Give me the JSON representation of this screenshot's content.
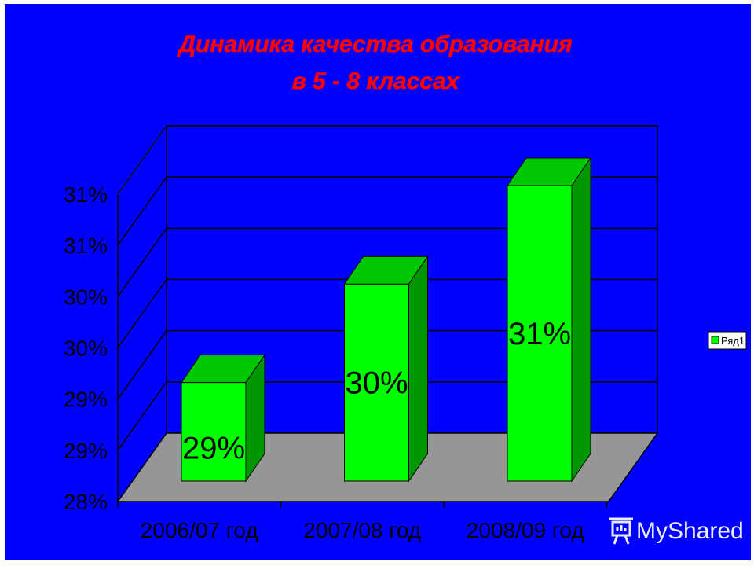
{
  "chart_data": {
    "type": "bar",
    "title_lines": [
      "Динамика качества образования",
      "в 5 - 8 классах"
    ],
    "categories": [
      "2006/07 год",
      "2007/08 год",
      "2008/09 год"
    ],
    "series": [
      {
        "name": "Ряд1",
        "values": [
          29,
          30,
          31
        ],
        "data_labels": [
          "29%",
          "30%",
          "31%"
        ]
      }
    ],
    "y_ticks": [
      "28%",
      "29%",
      "29%",
      "30%",
      "30%",
      "31%",
      "31%"
    ],
    "ylim": [
      28.0,
      31.0
    ],
    "grid": true,
    "legend_position": "right",
    "three_d": true,
    "colors": {
      "background": "#0000FF",
      "bar_front": "#00FF00",
      "bar_top": "#00C800",
      "bar_side": "#009600",
      "floor": "#969696",
      "title": "#FF0000",
      "text": "#000000"
    }
  },
  "watermark": "MyShared"
}
